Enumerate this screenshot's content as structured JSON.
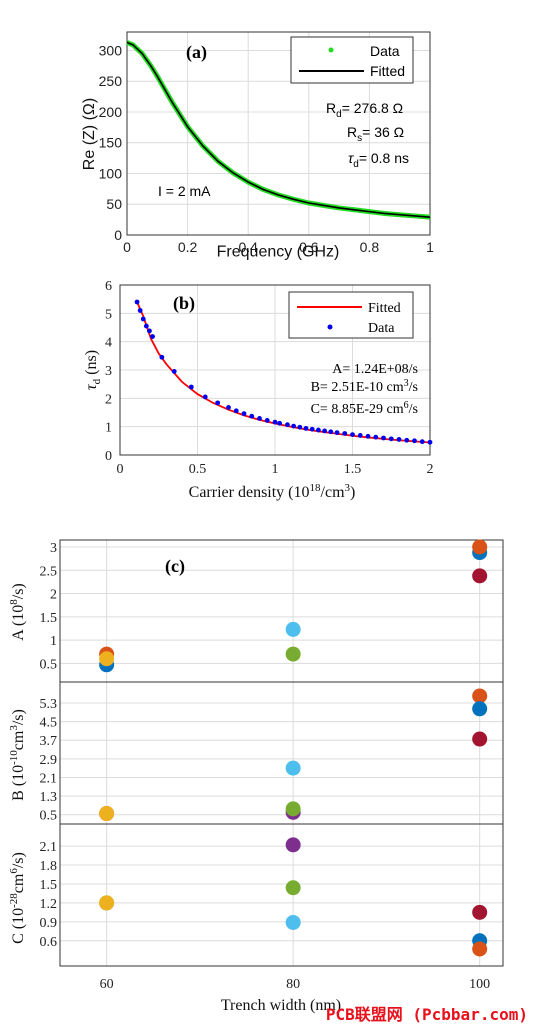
{
  "watermark": "PCB联盟网 (Pcbbar.com)",
  "chart_data": [
    {
      "type": "line",
      "panel_label": "(a)",
      "xlabel": "Frequency (GHz)",
      "ylabel": "Re (Z) (Ω)",
      "xlim": [
        0,
        1
      ],
      "ylim": [
        0,
        330
      ],
      "xticks": [
        0,
        0.2,
        0.4,
        0.6,
        0.8,
        1
      ],
      "xtick_labels": [
        "0",
        "0.2",
        "0.4",
        "0.6",
        "0.8",
        "1"
      ],
      "yticks": [
        0,
        50,
        100,
        150,
        200,
        250,
        300
      ],
      "ytick_labels": [
        "0",
        "50",
        "100",
        "150",
        "200",
        "250",
        "300"
      ],
      "grid": true,
      "legend_position": "top-right",
      "legend": [
        "Data",
        "Fitted"
      ],
      "annotations": {
        "rd_sym": "R",
        "rd_sub": "d",
        "rd_val": "= 276.8 Ω",
        "rs_sym": "R",
        "rs_sub": "s",
        "rs_val": "= 36 Ω",
        "td_sym": "τ",
        "td_sub": "d",
        "td_val": "= 0.8 ns",
        "current": "I = 2 mA"
      },
      "series": [
        {
          "name": "Data",
          "color": "#22dd22",
          "x": [
            0,
            0.02,
            0.05,
            0.08,
            0.1,
            0.15,
            0.2,
            0.25,
            0.3,
            0.35,
            0.4,
            0.45,
            0.5,
            0.55,
            0.6,
            0.65,
            0.7,
            0.75,
            0.8,
            0.85,
            0.9,
            0.95,
            1.0
          ],
          "y": [
            313,
            309,
            295,
            274,
            258,
            215,
            176,
            145,
            120,
            101,
            86,
            74,
            65,
            58,
            52,
            48,
            44,
            41,
            38,
            35,
            33,
            31,
            29
          ]
        },
        {
          "name": "Fitted",
          "color": "#000000",
          "x": [
            0,
            0.02,
            0.05,
            0.08,
            0.1,
            0.15,
            0.2,
            0.25,
            0.3,
            0.35,
            0.4,
            0.45,
            0.5,
            0.55,
            0.6,
            0.65,
            0.7,
            0.75,
            0.8,
            0.85,
            0.9,
            0.95,
            1.0
          ],
          "y": [
            313,
            309,
            295,
            274,
            258,
            215,
            176,
            145,
            120,
            101,
            86,
            74,
            65,
            58,
            52,
            48,
            44,
            41,
            38,
            35,
            33,
            31,
            29
          ]
        }
      ]
    },
    {
      "type": "line",
      "panel_label": "(b)",
      "xlabel_main": "Carrier density (10",
      "xlabel_sup": "18",
      "xlabel_tail": "/cm",
      "xlabel_sup2": "3",
      "xlabel_end": ")",
      "ylabel_sym": "τ",
      "ylabel_sub": "d",
      "ylabel_unit": " (ns)",
      "xlim": [
        0,
        2
      ],
      "ylim": [
        0,
        6
      ],
      "xticks": [
        0,
        0.5,
        1,
        1.5,
        2
      ],
      "xtick_labels": [
        "0",
        "0.5",
        "1",
        "1.5",
        "2"
      ],
      "yticks": [
        0,
        1,
        2,
        3,
        4,
        5,
        6
      ],
      "ytick_labels": [
        "0",
        "1",
        "2",
        "3",
        "4",
        "5",
        "6"
      ],
      "grid": true,
      "legend_position": "top-right",
      "legend": [
        "Fitted",
        "Data"
      ],
      "annotations": {
        "a_text": "A= 1.24E+08/s",
        "b_text": "B= 2.51E-10 cm",
        "b_sup": "3",
        "b_tail": "/s",
        "c_text": "C= 8.85E-29 cm",
        "c_sup": "6",
        "c_tail": "/s"
      },
      "series": [
        {
          "name": "Fitted",
          "color": "#ff0000",
          "x": [
            0.11,
            0.15,
            0.2,
            0.25,
            0.3,
            0.4,
            0.5,
            0.6,
            0.7,
            0.8,
            0.9,
            1.0,
            1.1,
            1.2,
            1.3,
            1.4,
            1.5,
            1.6,
            1.7,
            1.8,
            1.9,
            2.0
          ],
          "y": [
            5.4,
            4.9,
            4.1,
            3.58,
            3.2,
            2.58,
            2.15,
            1.84,
            1.6,
            1.4,
            1.24,
            1.11,
            1.0,
            0.9,
            0.82,
            0.75,
            0.68,
            0.62,
            0.57,
            0.52,
            0.48,
            0.44
          ]
        },
        {
          "name": "Data",
          "color": "#0000ee",
          "x": [
            0.11,
            0.13,
            0.15,
            0.17,
            0.19,
            0.21,
            0.27,
            0.35,
            0.46,
            0.55,
            0.63,
            0.7,
            0.75,
            0.8,
            0.85,
            0.9,
            0.95,
            1.0,
            1.03,
            1.08,
            1.12,
            1.16,
            1.2,
            1.24,
            1.28,
            1.32,
            1.36,
            1.4,
            1.45,
            1.5,
            1.55,
            1.6,
            1.65,
            1.7,
            1.75,
            1.8,
            1.85,
            1.9,
            1.95,
            2.0
          ],
          "y": [
            5.4,
            5.1,
            4.8,
            4.55,
            4.38,
            4.18,
            3.45,
            2.95,
            2.4,
            2.05,
            1.84,
            1.68,
            1.56,
            1.46,
            1.37,
            1.29,
            1.22,
            1.16,
            1.12,
            1.07,
            1.02,
            0.98,
            0.94,
            0.91,
            0.88,
            0.85,
            0.82,
            0.79,
            0.76,
            0.72,
            0.69,
            0.66,
            0.63,
            0.6,
            0.57,
            0.55,
            0.52,
            0.5,
            0.47,
            0.45
          ]
        }
      ]
    },
    {
      "type": "scatter",
      "panel_label": "(c)",
      "xlabel": "Trench width (nm)",
      "xlim": [
        55,
        102.5
      ],
      "xticks": [
        60,
        80,
        100
      ],
      "xtick_labels": [
        "60",
        "80",
        "100"
      ],
      "grid": true,
      "subplots": [
        {
          "ylabel_main": "A (10",
          "ylabel_sup": "8",
          "ylabel_tail": "/s)",
          "ylim": [
            0.1,
            3.15
          ],
          "yticks": [
            0.5,
            1,
            1.5,
            2,
            2.5,
            3
          ],
          "ytick_labels": [
            "0.5",
            "1",
            "1.5",
            "2",
            "2.5",
            "3"
          ],
          "points": [
            {
              "x": 60,
              "y": 0.47,
              "color": "#0072bd"
            },
            {
              "x": 60,
              "y": 0.7,
              "color": "#d95319"
            },
            {
              "x": 60,
              "y": 0.6,
              "color": "#edb120"
            },
            {
              "x": 80,
              "y": 1.23,
              "color": "#4dbeee"
            },
            {
              "x": 80,
              "y": 0.7,
              "color": "#77ac30"
            },
            {
              "x": 100,
              "y": 2.88,
              "color": "#0072bd"
            },
            {
              "x": 100,
              "y": 3.0,
              "color": "#d95319"
            },
            {
              "x": 100,
              "y": 2.38,
              "color": "#a2142f"
            }
          ]
        },
        {
          "ylabel_main": "B (10",
          "ylabel_sup": "-10",
          "ylabel_tail": "cm",
          "ylabel_sup2": "3",
          "ylabel_end": "/s)",
          "ylim": [
            0.1,
            6.2
          ],
          "yticks": [
            0.5,
            1.3,
            2.1,
            2.9,
            3.7,
            4.5,
            5.3
          ],
          "ytick_labels": [
            "0.5",
            "1.3",
            "2.1",
            "2.9",
            "3.7",
            "4.5",
            "5.3"
          ],
          "points": [
            {
              "x": 60,
              "y": 0.55,
              "color": "#d95319"
            },
            {
              "x": 60,
              "y": 0.55,
              "color": "#edb120"
            },
            {
              "x": 80,
              "y": 2.5,
              "color": "#4dbeee"
            },
            {
              "x": 80,
              "y": 0.6,
              "color": "#7e2f8e"
            },
            {
              "x": 80,
              "y": 0.75,
              "color": "#77ac30"
            },
            {
              "x": 100,
              "y": 5.6,
              "color": "#d95319"
            },
            {
              "x": 100,
              "y": 5.05,
              "color": "#0072bd"
            },
            {
              "x": 100,
              "y": 3.75,
              "color": "#a2142f"
            }
          ]
        },
        {
          "ylabel_main": "C (10",
          "ylabel_sup": "-28",
          "ylabel_tail": "cm",
          "ylabel_sup2": "6",
          "ylabel_end": "/s)",
          "ylim": [
            0.2,
            2.45
          ],
          "yticks": [
            0.6,
            0.9,
            1.2,
            1.5,
            1.8,
            2.1
          ],
          "ytick_labels": [
            "0.6",
            "0.9",
            "1.2",
            "1.5",
            "1.8",
            "2.1"
          ],
          "points": [
            {
              "x": 60,
              "y": 1.2,
              "color": "#77ac30"
            },
            {
              "x": 60,
              "y": 1.2,
              "color": "#edb120"
            },
            {
              "x": 80,
              "y": 2.12,
              "color": "#7e2f8e"
            },
            {
              "x": 80,
              "y": 1.44,
              "color": "#77ac30"
            },
            {
              "x": 80,
              "y": 0.89,
              "color": "#4dbeee"
            },
            {
              "x": 100,
              "y": 1.05,
              "color": "#a2142f"
            },
            {
              "x": 100,
              "y": 0.6,
              "color": "#0072bd"
            },
            {
              "x": 100,
              "y": 0.47,
              "color": "#d95319"
            }
          ]
        }
      ]
    }
  ]
}
